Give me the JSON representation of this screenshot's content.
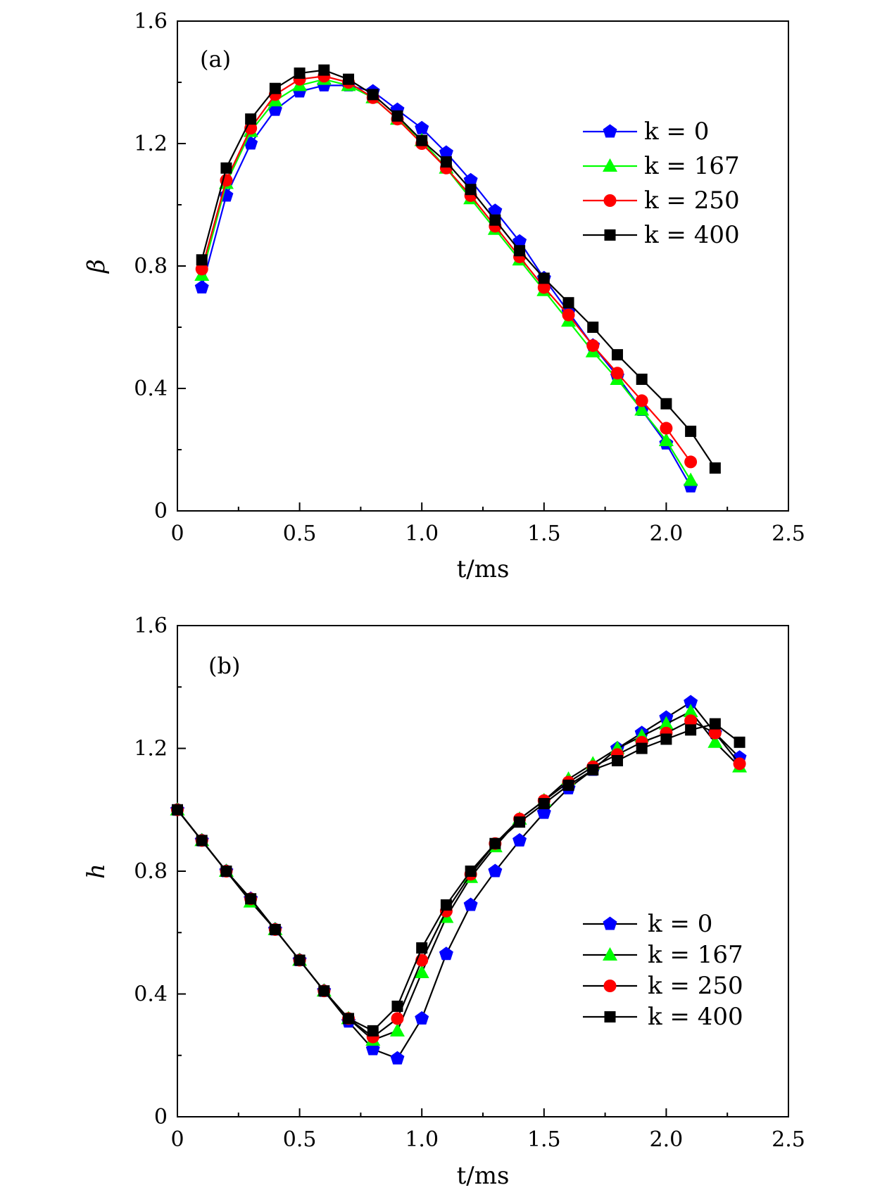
{
  "chart_data": [
    {
      "type": "line",
      "panel_label": "(a)",
      "xlabel": "t/ms",
      "ylabel": "β",
      "xlim": [
        0,
        2.5
      ],
      "ylim": [
        0,
        1.6
      ],
      "xticks": [
        "0",
        "0.5",
        "1.0",
        "1.5",
        "2.0",
        "2.5"
      ],
      "yticks": [
        "0",
        "0.4",
        "0.8",
        "1.2",
        "1.6"
      ],
      "legend_position": "top-right",
      "series": [
        {
          "name": "k = 0",
          "color": "#0000ff",
          "marker": "pentagon",
          "x": [
            0.1,
            0.2,
            0.3,
            0.4,
            0.5,
            0.6,
            0.7,
            0.8,
            0.9,
            1.0,
            1.1,
            1.2,
            1.3,
            1.4,
            1.5,
            1.6,
            1.7,
            1.8,
            1.9,
            2.0,
            2.1
          ],
          "y": [
            0.73,
            1.03,
            1.2,
            1.31,
            1.37,
            1.39,
            1.39,
            1.37,
            1.31,
            1.25,
            1.17,
            1.08,
            0.98,
            0.88,
            0.76,
            0.65,
            0.54,
            0.44,
            0.33,
            0.22,
            0.08
          ]
        },
        {
          "name": "k = 167",
          "color": "#00ff00",
          "marker": "triangle",
          "x": [
            0.1,
            0.2,
            0.3,
            0.4,
            0.5,
            0.6,
            0.7,
            0.8,
            0.9,
            1.0,
            1.1,
            1.2,
            1.3,
            1.4,
            1.5,
            1.6,
            1.7,
            1.8,
            1.9,
            2.0,
            2.1
          ],
          "y": [
            0.77,
            1.07,
            1.24,
            1.34,
            1.39,
            1.41,
            1.39,
            1.35,
            1.28,
            1.21,
            1.12,
            1.02,
            0.92,
            0.82,
            0.72,
            0.62,
            0.52,
            0.43,
            0.33,
            0.23,
            0.1
          ]
        },
        {
          "name": "k = 250",
          "color": "#ff0000",
          "marker": "circle",
          "x": [
            0.1,
            0.2,
            0.3,
            0.4,
            0.5,
            0.6,
            0.7,
            0.8,
            0.9,
            1.0,
            1.1,
            1.2,
            1.3,
            1.4,
            1.5,
            1.6,
            1.7,
            1.8,
            1.9,
            2.0,
            2.1
          ],
          "y": [
            0.79,
            1.08,
            1.25,
            1.36,
            1.41,
            1.42,
            1.4,
            1.35,
            1.28,
            1.2,
            1.12,
            1.03,
            0.93,
            0.83,
            0.73,
            0.64,
            0.54,
            0.45,
            0.36,
            0.27,
            0.16
          ]
        },
        {
          "name": "k = 400",
          "color": "#000000",
          "marker": "square",
          "x": [
            0.1,
            0.2,
            0.3,
            0.4,
            0.5,
            0.6,
            0.7,
            0.8,
            0.9,
            1.0,
            1.1,
            1.2,
            1.3,
            1.4,
            1.5,
            1.6,
            1.7,
            1.8,
            1.9,
            2.0,
            2.1,
            2.2
          ],
          "y": [
            0.82,
            1.12,
            1.28,
            1.38,
            1.43,
            1.44,
            1.41,
            1.36,
            1.29,
            1.21,
            1.14,
            1.05,
            0.95,
            0.85,
            0.76,
            0.68,
            0.6,
            0.51,
            0.43,
            0.35,
            0.26,
            0.14
          ]
        }
      ]
    },
    {
      "type": "line",
      "panel_label": "(b)",
      "xlabel": "t/ms",
      "ylabel": "h",
      "xlim": [
        0,
        2.5
      ],
      "ylim": [
        0,
        1.6
      ],
      "xticks": [
        "0",
        "0.5",
        "1.0",
        "1.5",
        "2.0",
        "2.5"
      ],
      "yticks": [
        "0",
        "0.4",
        "0.8",
        "1.2",
        "1.6"
      ],
      "legend_position": "bottom-right",
      "series": [
        {
          "name": "k = 0",
          "color": "#0000ff",
          "marker": "pentagon",
          "x": [
            0,
            0.1,
            0.2,
            0.3,
            0.4,
            0.5,
            0.6,
            0.7,
            0.8,
            0.9,
            1.0,
            1.1,
            1.2,
            1.3,
            1.4,
            1.5,
            1.6,
            1.7,
            1.8,
            1.9,
            2.0,
            2.1,
            2.2,
            2.3
          ],
          "y": [
            1.0,
            0.9,
            0.8,
            0.71,
            0.61,
            0.51,
            0.41,
            0.31,
            0.22,
            0.19,
            0.32,
            0.53,
            0.69,
            0.8,
            0.9,
            0.99,
            1.07,
            1.13,
            1.2,
            1.25,
            1.3,
            1.35,
            1.25,
            1.17
          ]
        },
        {
          "name": "k = 167",
          "color": "#00ff00",
          "marker": "triangle",
          "x": [
            0,
            0.1,
            0.2,
            0.3,
            0.4,
            0.5,
            0.6,
            0.7,
            0.8,
            0.9,
            1.0,
            1.1,
            1.2,
            1.3,
            1.4,
            1.5,
            1.6,
            1.7,
            1.8,
            1.9,
            2.0,
            2.1,
            2.2,
            2.3
          ],
          "y": [
            1.0,
            0.9,
            0.8,
            0.7,
            0.61,
            0.51,
            0.41,
            0.32,
            0.25,
            0.28,
            0.47,
            0.65,
            0.78,
            0.88,
            0.97,
            1.03,
            1.1,
            1.15,
            1.2,
            1.24,
            1.28,
            1.32,
            1.22,
            1.14
          ]
        },
        {
          "name": "k = 250",
          "color": "#ff0000",
          "marker": "circle",
          "x": [
            0,
            0.1,
            0.2,
            0.3,
            0.4,
            0.5,
            0.6,
            0.7,
            0.8,
            0.9,
            1.0,
            1.1,
            1.2,
            1.3,
            1.4,
            1.5,
            1.6,
            1.7,
            1.8,
            1.9,
            2.0,
            2.1,
            2.2,
            2.3
          ],
          "y": [
            1.0,
            0.9,
            0.8,
            0.71,
            0.61,
            0.51,
            0.41,
            0.32,
            0.26,
            0.32,
            0.51,
            0.67,
            0.79,
            0.89,
            0.97,
            1.03,
            1.09,
            1.14,
            1.18,
            1.22,
            1.25,
            1.29,
            1.25,
            1.15
          ]
        },
        {
          "name": "k = 400",
          "color": "#000000",
          "marker": "square",
          "x": [
            0,
            0.1,
            0.2,
            0.3,
            0.4,
            0.5,
            0.6,
            0.7,
            0.8,
            0.9,
            1.0,
            1.1,
            1.2,
            1.3,
            1.4,
            1.5,
            1.6,
            1.7,
            1.8,
            1.9,
            2.0,
            2.1,
            2.2,
            2.3
          ],
          "y": [
            1.0,
            0.9,
            0.8,
            0.71,
            0.61,
            0.51,
            0.41,
            0.32,
            0.28,
            0.36,
            0.55,
            0.69,
            0.8,
            0.89,
            0.96,
            1.02,
            1.08,
            1.13,
            1.16,
            1.2,
            1.23,
            1.26,
            1.28,
            1.22
          ]
        }
      ]
    }
  ]
}
